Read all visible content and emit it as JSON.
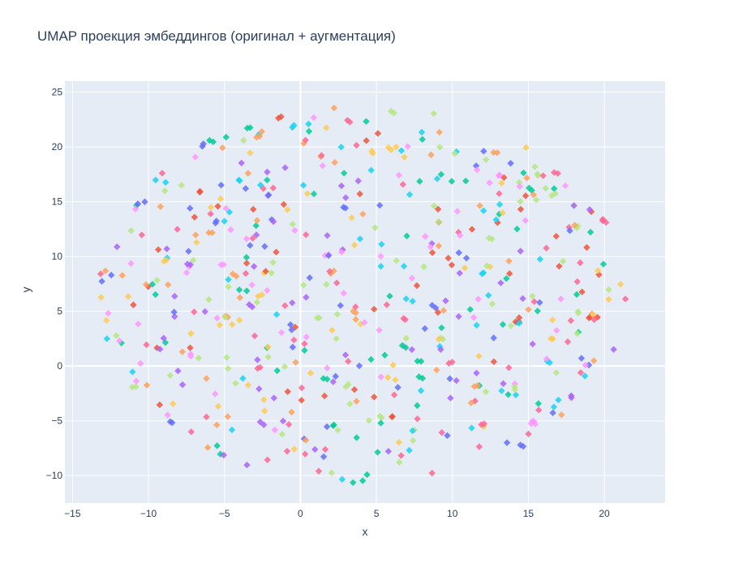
{
  "chart_data": {
    "type": "scatter",
    "title": "UMAP проекция эмбеддингов (оригинал + аугментация)",
    "xlabel": "x",
    "ylabel": "y",
    "xlim": [
      -15.5,
      24
    ],
    "ylim": [
      -12.5,
      26
    ],
    "x_ticks": [
      -15,
      -10,
      -5,
      0,
      5,
      10,
      15,
      20
    ],
    "y_ticks": [
      -10,
      -5,
      0,
      5,
      10,
      15,
      20,
      25
    ],
    "grid": true,
    "marker": "diamond",
    "point_count": 620,
    "colors": [
      "#636efa",
      "#EF553B",
      "#00cc96",
      "#ab63fa",
      "#FFA15A",
      "#19d3f3",
      "#FF6692",
      "#B6E880",
      "#FF97FF",
      "#FECB52"
    ],
    "layout_hint": "diamond markers spread in a roughly circular cloud centered near (4, 6.5), radius ~17",
    "seed": 42
  }
}
